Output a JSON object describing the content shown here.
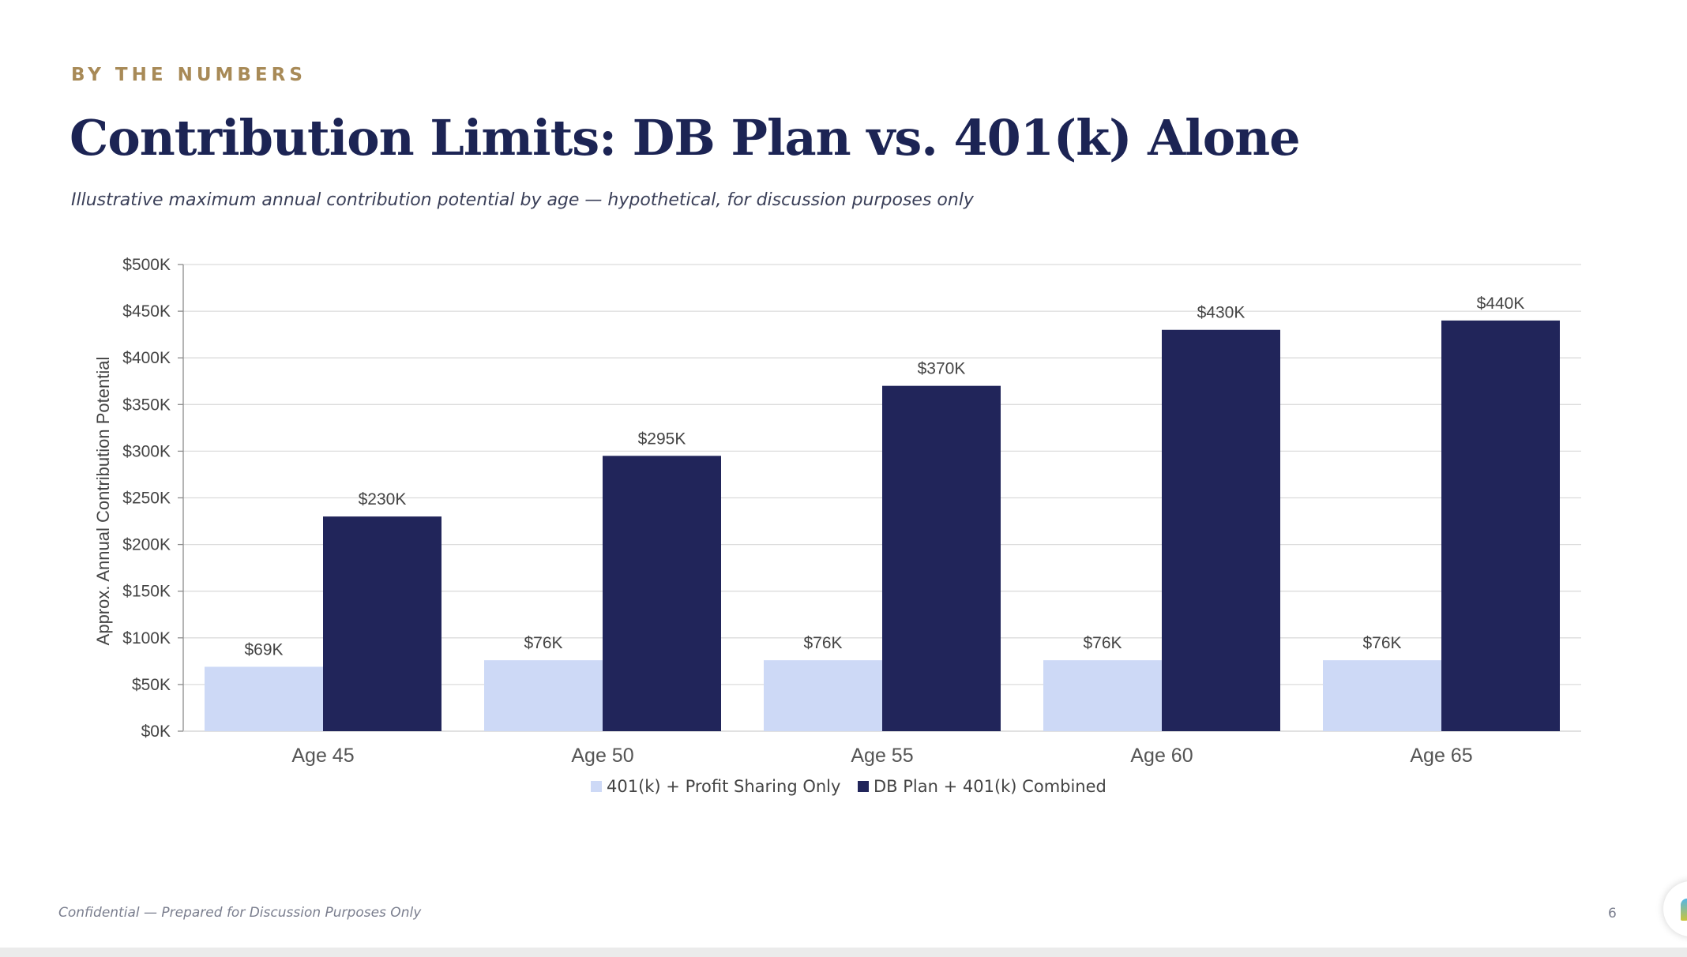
{
  "slide": {
    "eyebrow": "BY THE NUMBERS",
    "title": "Contribution Limits: DB Plan vs. 401(k) Alone",
    "subtitle": "Illustrative maximum annual contribution potential by age — hypothetical, for discussion purposes only",
    "footer_note": "Confidential — Prepared for Discussion Purposes Only",
    "page_number": "6"
  },
  "colors": {
    "series_light": "#cdd9f6",
    "series_dark": "#21255a",
    "eyebrow": "#a88a57",
    "title": "#1c2454"
  },
  "chart_data": {
    "type": "bar",
    "title": "",
    "xlabel": "",
    "ylabel": "Approx. Annual Contribution Potential",
    "categories": [
      "Age 45",
      "Age 50",
      "Age 55",
      "Age 60",
      "Age 65"
    ],
    "series": [
      {
        "name": "401(k) + Profit Sharing Only",
        "values": [
          69,
          76,
          76,
          76,
          76
        ],
        "labels": [
          "$69K",
          "$76K",
          "$76K",
          "$76K",
          "$76K"
        ]
      },
      {
        "name": "DB Plan + 401(k) Combined",
        "values": [
          230,
          295,
          370,
          430,
          440
        ],
        "labels": [
          "$230K",
          "$295K",
          "$370K",
          "$430K",
          "$440K"
        ]
      }
    ],
    "ylim": [
      0,
      500
    ],
    "yticks": [
      0,
      50,
      100,
      150,
      200,
      250,
      300,
      350,
      400,
      450,
      500
    ],
    "ytick_labels": [
      "$0K",
      "$50K",
      "$100K",
      "$150K",
      "$200K",
      "$250K",
      "$300K",
      "$350K",
      "$400K",
      "$450K",
      "$500K"
    ],
    "units": "thousands of dollars",
    "grid": true,
    "legend_position": "bottom"
  }
}
